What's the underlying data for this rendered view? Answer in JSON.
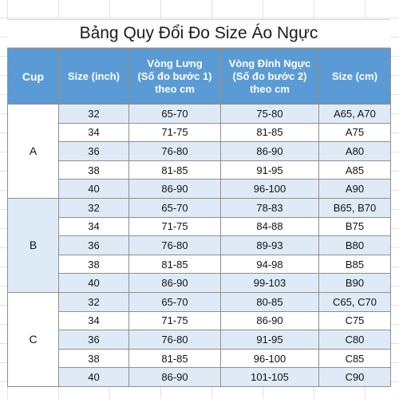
{
  "title": "Bảng Quy Đổi Đo Size Áo Ngực",
  "headers": {
    "cup": "Cup",
    "size_inch": "Size (inch)",
    "underbust": [
      "Vòng Lưng",
      "(Số đo bước 1)",
      "theo cm"
    ],
    "bust": [
      "Vòng Đỉnh Ngực",
      "(Số đo bước 2)",
      "theo cm"
    ],
    "size_cm": "Size (cm)"
  },
  "groups": [
    {
      "cup": "A",
      "rows": [
        {
          "inch": "32",
          "underbust": "65-70",
          "bust": "75-80",
          "size": "A65, A70"
        },
        {
          "inch": "34",
          "underbust": "71-75",
          "bust": "81-85",
          "size": "A75"
        },
        {
          "inch": "36",
          "underbust": "76-80",
          "bust": "86-90",
          "size": "A80"
        },
        {
          "inch": "38",
          "underbust": "81-85",
          "bust": "91-95",
          "size": "A85"
        },
        {
          "inch": "40",
          "underbust": "86-90",
          "bust": "96-100",
          "size": "A90"
        }
      ]
    },
    {
      "cup": "B",
      "rows": [
        {
          "inch": "32",
          "underbust": "65-70",
          "bust": "78-83",
          "size": "B65, B70"
        },
        {
          "inch": "34",
          "underbust": "71-75",
          "bust": "84-88",
          "size": "B75"
        },
        {
          "inch": "36",
          "underbust": "76-80",
          "bust": "89-93",
          "size": "B80"
        },
        {
          "inch": "38",
          "underbust": "81-85",
          "bust": "94-98",
          "size": "B85"
        },
        {
          "inch": "40",
          "underbust": "86-90",
          "bust": "99-103",
          "size": "B90"
        }
      ]
    },
    {
      "cup": "C",
      "rows": [
        {
          "inch": "32",
          "underbust": "65-70",
          "bust": "80-85",
          "size": "C65, C70"
        },
        {
          "inch": "34",
          "underbust": "71-75",
          "bust": "86-90",
          "size": "C75"
        },
        {
          "inch": "36",
          "underbust": "76-80",
          "bust": "91-95",
          "size": "C80"
        },
        {
          "inch": "38",
          "underbust": "81-85",
          "bust": "96-100",
          "size": "C85"
        },
        {
          "inch": "40",
          "underbust": "86-90",
          "bust": "101-105",
          "size": "C90"
        }
      ]
    }
  ],
  "colors": {
    "header_bg": "#5b9bd5",
    "band_bg": "#deebf7",
    "border": "#8f8f8f"
  }
}
